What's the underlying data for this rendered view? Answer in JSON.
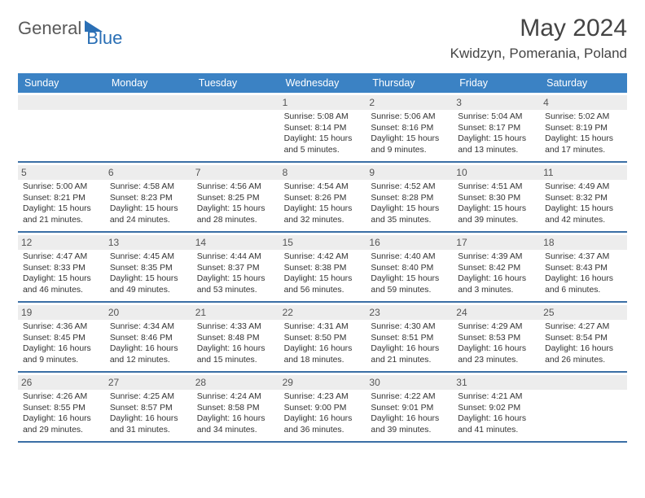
{
  "logo": {
    "part1": "General",
    "part2": "Blue"
  },
  "title": "May 2024",
  "location": "Kwidzyn, Pomerania, Poland",
  "colors": {
    "header_bg": "#3b82c4",
    "header_text": "#ffffff",
    "week_border": "#3b6fa5",
    "daynum_bg": "#ededed",
    "text": "#333333"
  },
  "weekdays": [
    "Sunday",
    "Monday",
    "Tuesday",
    "Wednesday",
    "Thursday",
    "Friday",
    "Saturday"
  ],
  "weeks": [
    [
      {
        "n": "",
        "sunrise": "",
        "sunset": "",
        "daylight": ""
      },
      {
        "n": "",
        "sunrise": "",
        "sunset": "",
        "daylight": ""
      },
      {
        "n": "",
        "sunrise": "",
        "sunset": "",
        "daylight": ""
      },
      {
        "n": "1",
        "sunrise": "Sunrise: 5:08 AM",
        "sunset": "Sunset: 8:14 PM",
        "daylight": "Daylight: 15 hours and 5 minutes."
      },
      {
        "n": "2",
        "sunrise": "Sunrise: 5:06 AM",
        "sunset": "Sunset: 8:16 PM",
        "daylight": "Daylight: 15 hours and 9 minutes."
      },
      {
        "n": "3",
        "sunrise": "Sunrise: 5:04 AM",
        "sunset": "Sunset: 8:17 PM",
        "daylight": "Daylight: 15 hours and 13 minutes."
      },
      {
        "n": "4",
        "sunrise": "Sunrise: 5:02 AM",
        "sunset": "Sunset: 8:19 PM",
        "daylight": "Daylight: 15 hours and 17 minutes."
      }
    ],
    [
      {
        "n": "5",
        "sunrise": "Sunrise: 5:00 AM",
        "sunset": "Sunset: 8:21 PM",
        "daylight": "Daylight: 15 hours and 21 minutes."
      },
      {
        "n": "6",
        "sunrise": "Sunrise: 4:58 AM",
        "sunset": "Sunset: 8:23 PM",
        "daylight": "Daylight: 15 hours and 24 minutes."
      },
      {
        "n": "7",
        "sunrise": "Sunrise: 4:56 AM",
        "sunset": "Sunset: 8:25 PM",
        "daylight": "Daylight: 15 hours and 28 minutes."
      },
      {
        "n": "8",
        "sunrise": "Sunrise: 4:54 AM",
        "sunset": "Sunset: 8:26 PM",
        "daylight": "Daylight: 15 hours and 32 minutes."
      },
      {
        "n": "9",
        "sunrise": "Sunrise: 4:52 AM",
        "sunset": "Sunset: 8:28 PM",
        "daylight": "Daylight: 15 hours and 35 minutes."
      },
      {
        "n": "10",
        "sunrise": "Sunrise: 4:51 AM",
        "sunset": "Sunset: 8:30 PM",
        "daylight": "Daylight: 15 hours and 39 minutes."
      },
      {
        "n": "11",
        "sunrise": "Sunrise: 4:49 AM",
        "sunset": "Sunset: 8:32 PM",
        "daylight": "Daylight: 15 hours and 42 minutes."
      }
    ],
    [
      {
        "n": "12",
        "sunrise": "Sunrise: 4:47 AM",
        "sunset": "Sunset: 8:33 PM",
        "daylight": "Daylight: 15 hours and 46 minutes."
      },
      {
        "n": "13",
        "sunrise": "Sunrise: 4:45 AM",
        "sunset": "Sunset: 8:35 PM",
        "daylight": "Daylight: 15 hours and 49 minutes."
      },
      {
        "n": "14",
        "sunrise": "Sunrise: 4:44 AM",
        "sunset": "Sunset: 8:37 PM",
        "daylight": "Daylight: 15 hours and 53 minutes."
      },
      {
        "n": "15",
        "sunrise": "Sunrise: 4:42 AM",
        "sunset": "Sunset: 8:38 PM",
        "daylight": "Daylight: 15 hours and 56 minutes."
      },
      {
        "n": "16",
        "sunrise": "Sunrise: 4:40 AM",
        "sunset": "Sunset: 8:40 PM",
        "daylight": "Daylight: 15 hours and 59 minutes."
      },
      {
        "n": "17",
        "sunrise": "Sunrise: 4:39 AM",
        "sunset": "Sunset: 8:42 PM",
        "daylight": "Daylight: 16 hours and 3 minutes."
      },
      {
        "n": "18",
        "sunrise": "Sunrise: 4:37 AM",
        "sunset": "Sunset: 8:43 PM",
        "daylight": "Daylight: 16 hours and 6 minutes."
      }
    ],
    [
      {
        "n": "19",
        "sunrise": "Sunrise: 4:36 AM",
        "sunset": "Sunset: 8:45 PM",
        "daylight": "Daylight: 16 hours and 9 minutes."
      },
      {
        "n": "20",
        "sunrise": "Sunrise: 4:34 AM",
        "sunset": "Sunset: 8:46 PM",
        "daylight": "Daylight: 16 hours and 12 minutes."
      },
      {
        "n": "21",
        "sunrise": "Sunrise: 4:33 AM",
        "sunset": "Sunset: 8:48 PM",
        "daylight": "Daylight: 16 hours and 15 minutes."
      },
      {
        "n": "22",
        "sunrise": "Sunrise: 4:31 AM",
        "sunset": "Sunset: 8:50 PM",
        "daylight": "Daylight: 16 hours and 18 minutes."
      },
      {
        "n": "23",
        "sunrise": "Sunrise: 4:30 AM",
        "sunset": "Sunset: 8:51 PM",
        "daylight": "Daylight: 16 hours and 21 minutes."
      },
      {
        "n": "24",
        "sunrise": "Sunrise: 4:29 AM",
        "sunset": "Sunset: 8:53 PM",
        "daylight": "Daylight: 16 hours and 23 minutes."
      },
      {
        "n": "25",
        "sunrise": "Sunrise: 4:27 AM",
        "sunset": "Sunset: 8:54 PM",
        "daylight": "Daylight: 16 hours and 26 minutes."
      }
    ],
    [
      {
        "n": "26",
        "sunrise": "Sunrise: 4:26 AM",
        "sunset": "Sunset: 8:55 PM",
        "daylight": "Daylight: 16 hours and 29 minutes."
      },
      {
        "n": "27",
        "sunrise": "Sunrise: 4:25 AM",
        "sunset": "Sunset: 8:57 PM",
        "daylight": "Daylight: 16 hours and 31 minutes."
      },
      {
        "n": "28",
        "sunrise": "Sunrise: 4:24 AM",
        "sunset": "Sunset: 8:58 PM",
        "daylight": "Daylight: 16 hours and 34 minutes."
      },
      {
        "n": "29",
        "sunrise": "Sunrise: 4:23 AM",
        "sunset": "Sunset: 9:00 PM",
        "daylight": "Daylight: 16 hours and 36 minutes."
      },
      {
        "n": "30",
        "sunrise": "Sunrise: 4:22 AM",
        "sunset": "Sunset: 9:01 PM",
        "daylight": "Daylight: 16 hours and 39 minutes."
      },
      {
        "n": "31",
        "sunrise": "Sunrise: 4:21 AM",
        "sunset": "Sunset: 9:02 PM",
        "daylight": "Daylight: 16 hours and 41 minutes."
      },
      {
        "n": "",
        "sunrise": "",
        "sunset": "",
        "daylight": ""
      }
    ]
  ]
}
